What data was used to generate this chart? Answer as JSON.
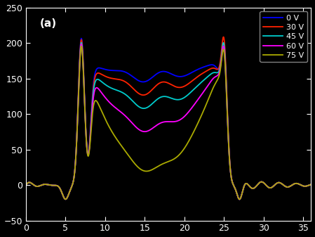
{
  "title": "(a)",
  "xlim": [
    0,
    36
  ],
  "ylim": [
    -50,
    250
  ],
  "xticks": [
    0,
    5,
    10,
    15,
    20,
    25,
    30,
    35
  ],
  "yticks": [
    -50,
    0,
    50,
    100,
    150,
    200,
    250
  ],
  "bg_color": "#000000",
  "axes_color": "#ffffff",
  "legend_entries": [
    "0 V",
    "30 V",
    "45 V",
    "60 V",
    "75 V"
  ],
  "colors": [
    "#0000ff",
    "#ff2200",
    "#00cccc",
    "#ff00ff",
    "#aaaa00"
  ],
  "linewidth": 1.3
}
